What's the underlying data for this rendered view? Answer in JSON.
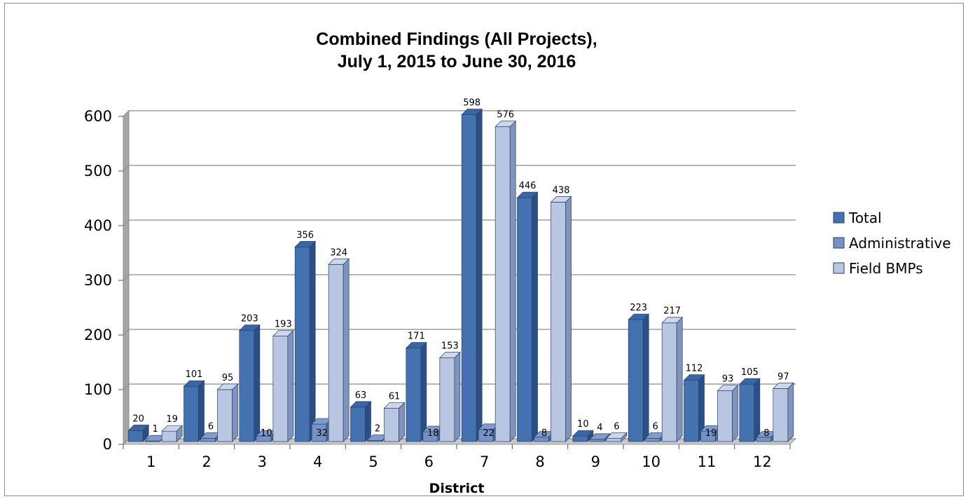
{
  "chart_data": {
    "type": "bar",
    "title_lines": [
      "Combined Findings (All Projects),",
      "July 1, 2015 to June 30, 2016"
    ],
    "xlabel": "District",
    "ylabel": "",
    "ylim": [
      0,
      600
    ],
    "yticks": [
      0,
      100,
      200,
      300,
      400,
      500,
      600
    ],
    "categories": [
      "1",
      "2",
      "3",
      "4",
      "5",
      "6",
      "7",
      "8",
      "9",
      "10",
      "11",
      "12"
    ],
    "series": [
      {
        "name": "Total",
        "values": [
          20,
          101,
          203,
          356,
          63,
          171,
          598,
          446,
          10,
          223,
          112,
          105
        ]
      },
      {
        "name": "Administrative",
        "values": [
          1,
          6,
          10,
          32,
          2,
          18,
          22,
          8,
          4,
          6,
          19,
          8
        ]
      },
      {
        "name": "Field BMPs",
        "values": [
          19,
          95,
          193,
          324,
          61,
          153,
          576,
          438,
          6,
          217,
          93,
          97
        ]
      }
    ],
    "colors": {
      "Total": {
        "front": "#4472b0",
        "side": "#2a4f84",
        "top": "#3a66a6"
      },
      "Administrative": {
        "front": "#7492c5",
        "side": "#4f6c9e",
        "top": "#7f9ccd"
      },
      "Field BMPs": {
        "front": "#b9c6e2",
        "side": "#7f93bd",
        "top": "#ccd6ec"
      }
    },
    "grid": true,
    "legend_position": "right"
  }
}
